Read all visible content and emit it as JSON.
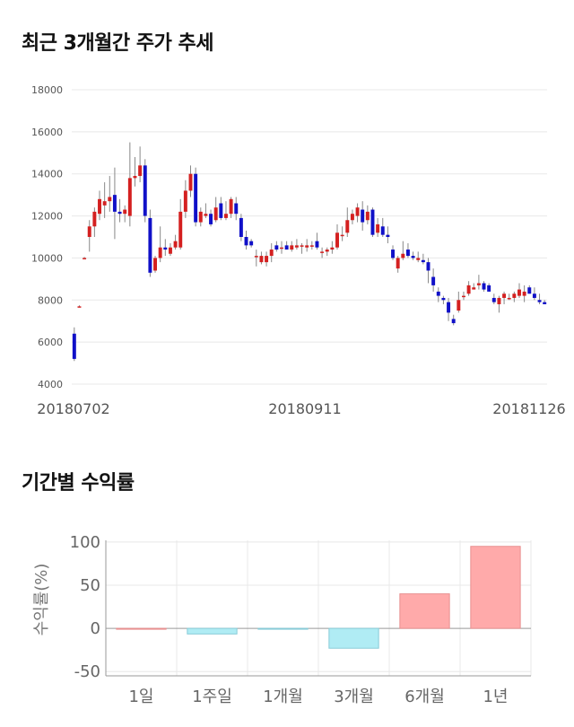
{
  "section1": {
    "title": "최근 3개월간 주가 추세"
  },
  "section2": {
    "title": "기간별 수익률"
  },
  "colors": {
    "up": "#d42020",
    "down": "#1010c8",
    "pos_bar": "#ffaaaa",
    "neg_bar": "#b0ecf4",
    "grid": "#e8e8e8"
  },
  "chart_data": [
    {
      "type": "candlestick",
      "title": "최근 3개월간 주가 추세",
      "ylim": [
        4000,
        18000
      ],
      "yticks": [
        4000,
        6000,
        8000,
        10000,
        12000,
        14000,
        16000,
        18000
      ],
      "x_tick_labels": [
        "20180702",
        "20180911",
        "20181126"
      ],
      "grid": true,
      "ohlc": [
        [
          6400,
          6700,
          5100,
          5200
        ],
        [
          7700,
          7750,
          7650,
          7700
        ],
        [
          10000,
          10050,
          9950,
          10000
        ],
        [
          11000,
          11800,
          10300,
          11500
        ],
        [
          11500,
          12400,
          11000,
          12200
        ],
        [
          12100,
          13200,
          11800,
          12800
        ],
        [
          12500,
          13600,
          11900,
          12700
        ],
        [
          12700,
          13900,
          12200,
          12900
        ],
        [
          13000,
          14300,
          10900,
          12200
        ],
        [
          12200,
          12800,
          11700,
          12100
        ],
        [
          12100,
          12500,
          11700,
          12300
        ],
        [
          12000,
          15500,
          11500,
          13800
        ],
        [
          13800,
          14800,
          13400,
          13900
        ],
        [
          13900,
          15300,
          13600,
          14400
        ],
        [
          14400,
          14700,
          11700,
          12000
        ],
        [
          11900,
          12300,
          9100,
          9300
        ],
        [
          9400,
          10100,
          9300,
          10000
        ],
        [
          10000,
          11500,
          9800,
          10500
        ],
        [
          10500,
          10900,
          10100,
          10400
        ],
        [
          10200,
          10700,
          10100,
          10500
        ],
        [
          10500,
          11100,
          10400,
          10800
        ],
        [
          10500,
          12800,
          10400,
          12200
        ],
        [
          12200,
          13700,
          11900,
          13200
        ],
        [
          13200,
          14400,
          12900,
          14000
        ],
        [
          14000,
          14300,
          11500,
          11700
        ],
        [
          11700,
          12400,
          11500,
          12200
        ],
        [
          12000,
          12600,
          11900,
          12100
        ],
        [
          12100,
          12300,
          11500,
          11600
        ],
        [
          11800,
          12900,
          11700,
          12400
        ],
        [
          12600,
          12900,
          11800,
          11900
        ],
        [
          11900,
          12700,
          11800,
          12100
        ],
        [
          12100,
          12900,
          11900,
          12800
        ],
        [
          12600,
          12900,
          11800,
          12100
        ],
        [
          11900,
          12100,
          10800,
          11000
        ],
        [
          11000,
          11300,
          10400,
          10600
        ],
        [
          10800,
          10900,
          10500,
          10600
        ],
        [
          10100,
          10400,
          9600,
          10100
        ],
        [
          9800,
          10300,
          9700,
          10100
        ],
        [
          9800,
          10300,
          9600,
          10100
        ],
        [
          10100,
          10700,
          9800,
          10400
        ],
        [
          10600,
          10800,
          10300,
          10400
        ],
        [
          10500,
          10800,
          10200,
          10500
        ],
        [
          10600,
          10800,
          10400,
          10400
        ],
        [
          10400,
          10800,
          10300,
          10600
        ],
        [
          10500,
          10900,
          10400,
          10600
        ],
        [
          10600,
          10700,
          10200,
          10600
        ],
        [
          10500,
          10900,
          10300,
          10600
        ],
        [
          10600,
          10800,
          10400,
          10600
        ],
        [
          10800,
          11200,
          10400,
          10500
        ],
        [
          10300,
          10500,
          10000,
          10300
        ],
        [
          10300,
          10500,
          10100,
          10400
        ],
        [
          10400,
          10800,
          10200,
          10500
        ],
        [
          10500,
          11600,
          10400,
          11200
        ],
        [
          11100,
          11500,
          10800,
          11100
        ],
        [
          11200,
          12400,
          11000,
          11800
        ],
        [
          11800,
          12300,
          11600,
          12100
        ],
        [
          12000,
          12600,
          11700,
          12400
        ],
        [
          12300,
          12700,
          11300,
          11700
        ],
        [
          11800,
          12500,
          11600,
          12200
        ],
        [
          12300,
          12400,
          11000,
          11100
        ],
        [
          11200,
          11900,
          11000,
          11600
        ],
        [
          11500,
          11900,
          11000,
          11100
        ],
        [
          11100,
          11500,
          10700,
          11000
        ],
        [
          10400,
          10600,
          9900,
          10000
        ],
        [
          9500,
          10100,
          9300,
          10000
        ],
        [
          10000,
          10800,
          9900,
          10200
        ],
        [
          10400,
          10700,
          10000,
          10100
        ],
        [
          10100,
          10300,
          9900,
          10000
        ],
        [
          9900,
          10300,
          9800,
          10000
        ],
        [
          9900,
          10200,
          9700,
          9800
        ],
        [
          9800,
          10000,
          8800,
          9400
        ],
        [
          9100,
          9500,
          8400,
          8700
        ],
        [
          8400,
          8600,
          7900,
          8200
        ],
        [
          8100,
          8200,
          7800,
          8000
        ],
        [
          7900,
          8100,
          7000,
          7400
        ],
        [
          7100,
          7300,
          6800,
          6900
        ],
        [
          7500,
          8400,
          7400,
          8000
        ],
        [
          8200,
          8400,
          8000,
          8200
        ],
        [
          8300,
          8900,
          8200,
          8700
        ],
        [
          8500,
          8800,
          8500,
          8600
        ],
        [
          8700,
          9200,
          8500,
          8800
        ],
        [
          8800,
          8900,
          8400,
          8500
        ],
        [
          8700,
          8800,
          8400,
          8400
        ],
        [
          8100,
          8300,
          7800,
          7900
        ],
        [
          7800,
          8200,
          7400,
          8100
        ],
        [
          8100,
          8400,
          7800,
          8300
        ],
        [
          8100,
          8300,
          8000,
          8100
        ],
        [
          8100,
          8400,
          7900,
          8300
        ],
        [
          8200,
          8800,
          8100,
          8500
        ],
        [
          8200,
          8700,
          7900,
          8400
        ],
        [
          8600,
          8700,
          8300,
          8300
        ],
        [
          8300,
          8600,
          8000,
          8100
        ],
        [
          8000,
          8300,
          7800,
          7900
        ],
        [
          7900,
          8000,
          7800,
          7800
        ]
      ]
    },
    {
      "type": "bar",
      "title": "기간별 수익률",
      "categories": [
        "1일",
        "1주일",
        "1개월",
        "3개월",
        "6개월",
        "1년"
      ],
      "values": [
        0.0,
        -6.5,
        -1.0,
        -23.0,
        40.0,
        95.0
      ],
      "ylabel": "수익률(%)",
      "ylim": [
        -55,
        102
      ],
      "yticks": [
        -50,
        0,
        50,
        100
      ],
      "grid": true
    }
  ]
}
